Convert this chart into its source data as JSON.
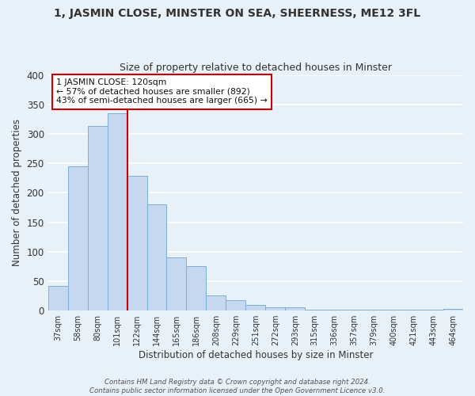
{
  "title": "1, JASMIN CLOSE, MINSTER ON SEA, SHEERNESS, ME12 3FL",
  "subtitle": "Size of property relative to detached houses in Minster",
  "xlabel": "Distribution of detached houses by size in Minster",
  "ylabel": "Number of detached properties",
  "bar_color": "#c5d8f0",
  "bar_edge_color": "#7bafd4",
  "bg_color": "#e8f0f8",
  "grid_color": "#ffffff",
  "categories": [
    "37sqm",
    "58sqm",
    "80sqm",
    "101sqm",
    "122sqm",
    "144sqm",
    "165sqm",
    "186sqm",
    "208sqm",
    "229sqm",
    "251sqm",
    "272sqm",
    "293sqm",
    "315sqm",
    "336sqm",
    "357sqm",
    "379sqm",
    "400sqm",
    "421sqm",
    "443sqm",
    "464sqm"
  ],
  "values": [
    42,
    245,
    313,
    335,
    228,
    180,
    90,
    75,
    25,
    18,
    10,
    5,
    5,
    2,
    1,
    1,
    1,
    1,
    1,
    1,
    3
  ],
  "ylim": [
    0,
    400
  ],
  "vline_x": 3.5,
  "vline_color": "#cc0000",
  "annotation_title": "1 JASMIN CLOSE: 120sqm",
  "annotation_line1": "← 57% of detached houses are smaller (892)",
  "annotation_line2": "43% of semi-detached houses are larger (665) →",
  "annotation_box_color": "#ffffff",
  "annotation_box_edge": "#cc0000",
  "footer1": "Contains HM Land Registry data © Crown copyright and database right 2024.",
  "footer2": "Contains public sector information licensed under the Open Government Licence v3.0."
}
